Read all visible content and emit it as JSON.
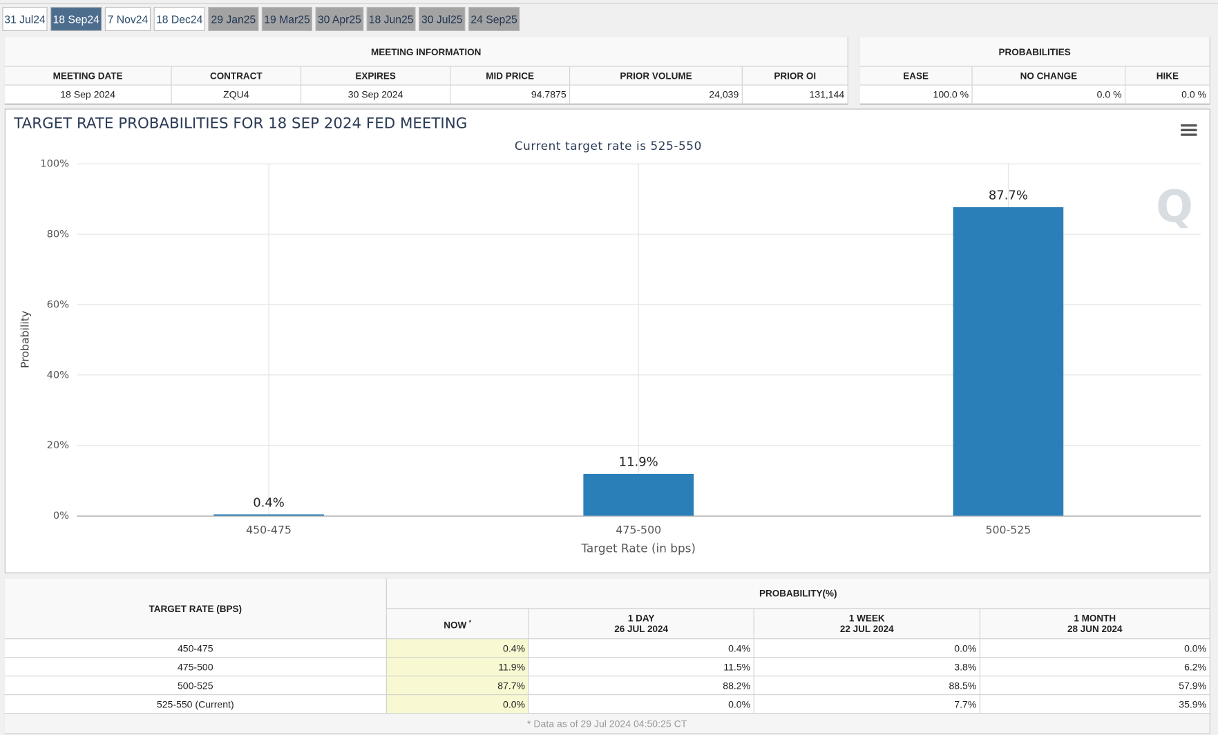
{
  "tabs": [
    "31 Jul24",
    "18 Sep24",
    "7 Nov24",
    "18 Dec24",
    "29 Jan25",
    "19 Mar25",
    "30 Apr25",
    "18 Jun25",
    "30 Jul25",
    "24 Sep25"
  ],
  "meeting_information": {
    "title": "MEETING INFORMATION",
    "columns": [
      "MEETING DATE",
      "CONTRACT",
      "EXPIRES",
      "MID PRICE",
      "PRIOR VOLUME",
      "PRIOR OI"
    ],
    "row": [
      "18 Sep 2024",
      "ZQU4",
      "30 Sep 2024",
      "94.7875",
      "24,039",
      "131,144"
    ]
  },
  "probabilities": {
    "title": "PROBABILITIES",
    "columns": [
      "EASE",
      "NO CHANGE",
      "HIKE"
    ],
    "row": [
      "100.0 %",
      "0.0 %",
      "0.0 %"
    ]
  },
  "chart_data": {
    "type": "bar",
    "title": "TARGET RATE PROBABILITIES FOR 18 SEP 2024 FED MEETING",
    "subtitle": "Current target rate is 525-550",
    "x_label": "Target Rate (in bps)",
    "y_label": "Probability",
    "categories": [
      "450-475",
      "475-500",
      "500-525"
    ],
    "values": [
      0.4,
      11.9,
      87.7
    ],
    "value_labels": [
      "0.4%",
      "11.9%",
      "87.7%"
    ],
    "color": "#2a7fb8",
    "ylim": [
      0,
      100
    ],
    "yticks": [
      {
        "value": 0,
        "label": "0%"
      },
      {
        "value": 20,
        "label": "20%"
      },
      {
        "value": 40,
        "label": "40%"
      },
      {
        "value": 60,
        "label": "60%"
      },
      {
        "value": 80,
        "label": "80%"
      },
      {
        "value": 100,
        "label": "100%"
      }
    ],
    "grid": true
  },
  "probability_table": {
    "rate_header": "TARGET RATE (BPS)",
    "group_header": "PROBABILITY(%)",
    "columns": [
      {
        "label": "NOW",
        "note": "*"
      },
      {
        "label": "1 DAY",
        "date": "26 JUL 2024"
      },
      {
        "label": "1 WEEK",
        "date": "22 JUL 2024"
      },
      {
        "label": "1 MONTH",
        "date": "28 JUN 2024"
      }
    ],
    "rows": [
      [
        "450-475",
        "0.4%",
        "0.4%",
        "0.0%",
        "0.0%"
      ],
      [
        "475-500",
        "11.9%",
        "11.5%",
        "3.8%",
        "6.2%"
      ],
      [
        "500-525",
        "87.7%",
        "88.2%",
        "88.5%",
        "57.9%"
      ],
      [
        "525-550 (Current)",
        "0.0%",
        "0.0%",
        "7.7%",
        "35.9%"
      ]
    ],
    "footnote": "* Data as of 29 Jul 2024 04:50:25 CT"
  }
}
